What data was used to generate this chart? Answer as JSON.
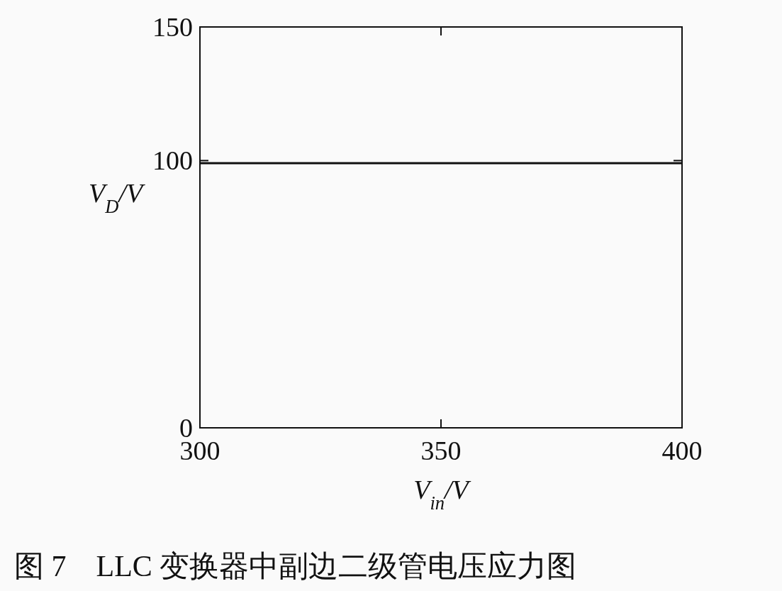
{
  "chart_data": {
    "type": "line",
    "title": "图 7　LLC 变换器中副边二级管电压应力图",
    "xlabel": "V$_{in}$/V",
    "ylabel": "V$_{D}$/V",
    "x": [
      300,
      400
    ],
    "series": [
      {
        "color": "#111111",
        "values": [
          99,
          99
        ]
      }
    ],
    "xlim": [
      300,
      400
    ],
    "xticks": [
      300,
      350,
      400
    ],
    "ylim": [
      0,
      150
    ],
    "yticks": [
      0,
      100,
      150
    ],
    "marker": "none",
    "line_style": "solid"
  }
}
